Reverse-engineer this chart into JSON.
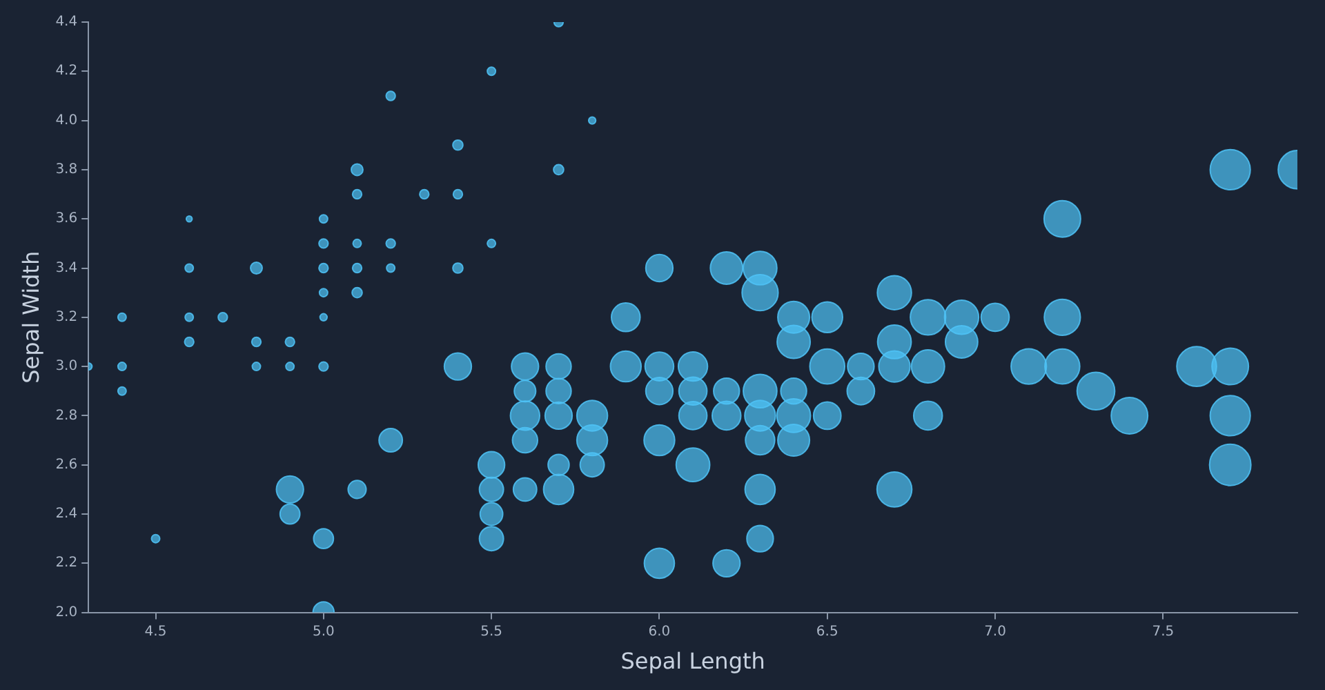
{
  "chart_data": {
    "type": "bubble",
    "xlabel": "Sepal Length",
    "ylabel": "Sepal Width",
    "xlim": [
      4.3,
      7.9
    ],
    "ylim": [
      2.0,
      4.4
    ],
    "xticks": [
      {
        "value": 4.5,
        "label": "4.5"
      },
      {
        "value": 5,
        "label": "5.0"
      },
      {
        "value": 5.5,
        "label": "5.5"
      },
      {
        "value": 6,
        "label": "6.0"
      },
      {
        "value": 6.5,
        "label": "6.5"
      },
      {
        "value": 7,
        "label": "7.0"
      },
      {
        "value": 7.5,
        "label": "7.5"
      }
    ],
    "yticks": [
      {
        "value": 2,
        "label": "2.0"
      },
      {
        "value": 2.2,
        "label": "2.2"
      },
      {
        "value": 2.4,
        "label": "2.4"
      },
      {
        "value": 2.6,
        "label": "2.6"
      },
      {
        "value": 2.8,
        "label": "2.8"
      },
      {
        "value": 3,
        "label": "3.0"
      },
      {
        "value": 3.2,
        "label": "3.2"
      },
      {
        "value": 3.4,
        "label": "3.4"
      },
      {
        "value": 3.6,
        "label": "3.6"
      },
      {
        "value": 3.8,
        "label": "3.8"
      },
      {
        "value": 4,
        "label": "4.0"
      },
      {
        "value": 4.2,
        "label": "4.2"
      },
      {
        "value": 4.4,
        "label": "4.4"
      }
    ],
    "series": [
      {
        "color": "#4fc3f7",
        "x": [
          5.1,
          4.9,
          4.6,
          5.0,
          5.4,
          4.6,
          5.0,
          4.4,
          4.9,
          5.4,
          4.8,
          4.3,
          5.8,
          5.7,
          5.7,
          5.4,
          5.1,
          4.6,
          5.1,
          4.8,
          5.0,
          5.2,
          5.2,
          4.7,
          4.8,
          5.2,
          5.5,
          5.0,
          5.5,
          4.4,
          5.1,
          4.5,
          4.4,
          5.0,
          5.1,
          4.6,
          5.3,
          5.0,
          7.0,
          5.5,
          6.5,
          5.7,
          4.9,
          6.6,
          5.2,
          5.0,
          6.1,
          5.6,
          5.6,
          6.2,
          5.6,
          5.9,
          6.1,
          6.4,
          6.6,
          6.8,
          6.0,
          5.7,
          5.5,
          6.0,
          5.4,
          6.0,
          6.3,
          5.5,
          5.5,
          5.8,
          5.0,
          5.6,
          5.7,
          5.7,
          6.2,
          5.1,
          6.3,
          5.8,
          7.1,
          6.3,
          6.5,
          7.6,
          4.9,
          7.3,
          6.7,
          7.2,
          6.5,
          6.4,
          6.8,
          5.7,
          5.8,
          6.4,
          7.7,
          7.7,
          6.0,
          6.9,
          5.6,
          7.7,
          6.3,
          6.7,
          7.2,
          6.2,
          6.1,
          6.4,
          7.2,
          7.4,
          7.9,
          6.3,
          6.1,
          7.7,
          6.3,
          6.4,
          6.0,
          6.9,
          6.7,
          6.8,
          6.7,
          6.3,
          6.2,
          5.9
        ],
        "values": [
          3.5,
          3.0,
          3.1,
          3.6,
          3.9,
          3.4,
          3.4,
          2.9,
          3.1,
          3.7,
          3.0,
          3.0,
          4.0,
          4.4,
          3.8,
          3.4,
          3.7,
          3.6,
          3.3,
          3.4,
          3.0,
          3.5,
          3.4,
          3.2,
          3.1,
          4.1,
          4.2,
          3.2,
          3.5,
          3.0,
          3.4,
          2.3,
          3.2,
          3.5,
          3.8,
          3.2,
          3.7,
          3.3,
          3.2,
          2.3,
          2.8,
          2.8,
          2.4,
          2.9,
          2.7,
          2.0,
          2.9,
          2.9,
          3.0,
          2.2,
          2.5,
          3.2,
          2.8,
          2.9,
          3.0,
          2.8,
          2.9,
          2.6,
          2.4,
          2.7,
          3.0,
          3.4,
          2.3,
          2.5,
          2.6,
          2.6,
          2.3,
          2.7,
          3.0,
          2.9,
          2.9,
          2.5,
          3.3,
          2.7,
          3.0,
          2.9,
          3.0,
          3.0,
          2.5,
          2.9,
          2.5,
          3.6,
          3.2,
          2.7,
          3.0,
          2.5,
          2.8,
          3.2,
          3.8,
          2.6,
          2.2,
          3.2,
          2.8,
          2.8,
          2.7,
          3.3,
          3.2,
          2.8,
          3.0,
          2.8,
          3.0,
          2.8,
          3.8,
          2.8,
          2.6,
          3.0,
          3.4,
          3.1,
          3.0,
          3.1,
          3.1,
          3.2,
          3.0,
          2.5,
          3.4,
          3.0
        ],
        "sizes": [
          0.04,
          0.04,
          0.05,
          0.04,
          0.06,
          0.04,
          0.05,
          0.04,
          0.05,
          0.05,
          0.04,
          0.03,
          0.03,
          0.05,
          0.06,
          0.06,
          0.05,
          0.02,
          0.06,
          0.08,
          0.05,
          0.05,
          0.04,
          0.05,
          0.05,
          0.05,
          0.04,
          0.03,
          0.04,
          0.04,
          0.05,
          0.04,
          0.04,
          0.05,
          0.08,
          0.04,
          0.05,
          0.04,
          0.46,
          0.34,
          0.44,
          0.43,
          0.23,
          0.44,
          0.32,
          0.26,
          0.46,
          0.27,
          0.43,
          0.43,
          0.32,
          0.48,
          0.46,
          0.39,
          0.41,
          0.48,
          0.43,
          0.26,
          0.3,
          0.55,
          0.43,
          0.43,
          0.41,
          0.34,
          0.41,
          0.34,
          0.23,
          0.37,
          0.37,
          0.37,
          0.39,
          0.19,
          0.76,
          0.55,
          0.73,
          0.66,
          0.71,
          0.92,
          0.43,
          0.83,
          0.71,
          0.78,
          0.55,
          0.59,
          0.64,
          0.53,
          0.55,
          0.59,
          0.94,
          1,
          0.53,
          0.68,
          0.5,
          0.94,
          0.5,
          0.68,
          0.76,
          0.48,
          0.5,
          0.66,
          0.71,
          0.78,
          0.86,
          0.55,
          0.66,
          0.78,
          0.66,
          0.64,
          0.48,
          0.61,
          0.66,
          0.73,
          0.57,
          0.53,
          0.61,
          0.55
        ]
      }
    ]
  }
}
